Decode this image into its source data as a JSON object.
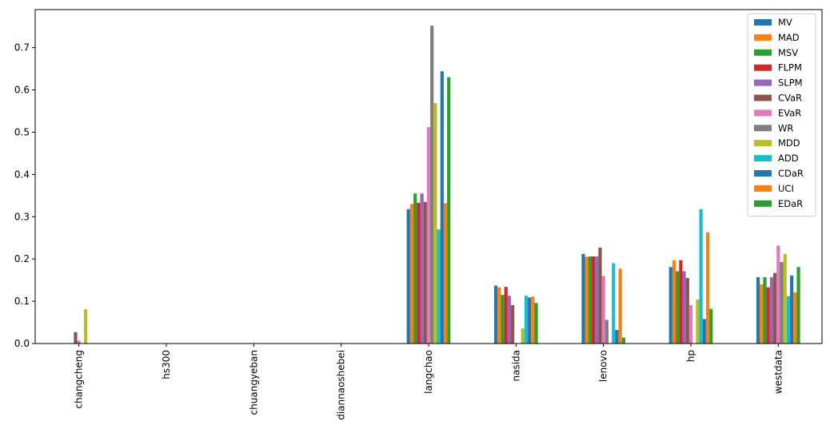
{
  "chart_data": {
    "type": "bar",
    "categories": [
      "changcheng",
      "hs300",
      "chuangyeban",
      "diannaoshebei",
      "langchao",
      "nasida",
      "lenovo",
      "hp",
      "westdata"
    ],
    "ylim": [
      0,
      0.79
    ],
    "yticks": [
      0.0,
      0.1,
      0.2,
      0.3,
      0.4,
      0.5,
      0.6,
      0.7
    ],
    "ytick_labels": [
      "0.0",
      "0.1",
      "0.2",
      "0.3",
      "0.4",
      "0.5",
      "0.6",
      "0.7"
    ],
    "legend_position": "top-right",
    "grid": false,
    "series": [
      {
        "name": "MV",
        "color": "#1f77b4",
        "values": [
          0,
          0,
          0,
          0,
          0.318,
          0.137,
          0.212,
          0.181,
          0.157
        ]
      },
      {
        "name": "MAD",
        "color": "#ff7f0e",
        "values": [
          0,
          0,
          0,
          0,
          0.33,
          0.133,
          0.205,
          0.197,
          0.14
        ]
      },
      {
        "name": "MSV",
        "color": "#2ca02c",
        "values": [
          0,
          0,
          0,
          0,
          0.355,
          0.115,
          0.206,
          0.171,
          0.157
        ]
      },
      {
        "name": "FLPM",
        "color": "#d62728",
        "values": [
          0,
          0,
          0,
          0,
          0.333,
          0.134,
          0.206,
          0.197,
          0.133
        ]
      },
      {
        "name": "SLPM",
        "color": "#9467bd",
        "values": [
          0,
          0,
          0,
          0,
          0.355,
          0.113,
          0.206,
          0.171,
          0.157
        ]
      },
      {
        "name": "CVaR",
        "color": "#8c564b",
        "values": [
          0.027,
          0,
          0,
          0,
          0.335,
          0.091,
          0.227,
          0.155,
          0.167
        ]
      },
      {
        "name": "EVaR",
        "color": "#e377c2",
        "values": [
          0.007,
          0,
          0,
          0,
          0.512,
          0,
          0.16,
          0.091,
          0.232
        ]
      },
      {
        "name": "WR",
        "color": "#7f7f7f",
        "values": [
          0,
          0,
          0,
          0,
          0.752,
          0,
          0.056,
          0,
          0.193
        ]
      },
      {
        "name": "MDD",
        "color": "#bcbd22",
        "values": [
          0.081,
          0,
          0,
          0,
          0.569,
          0.036,
          0,
          0.104,
          0.212
        ]
      },
      {
        "name": "ADD",
        "color": "#17becf",
        "values": [
          0,
          0,
          0,
          0,
          0.27,
          0.113,
          0.19,
          0.318,
          0.112
        ]
      },
      {
        "name": "CDaR",
        "color": "#1f77b4",
        "values": [
          0,
          0,
          0,
          0,
          0.644,
          0.109,
          0.032,
          0.058,
          0.161
        ]
      },
      {
        "name": "UCI",
        "color": "#ff7f0e",
        "values": [
          0,
          0,
          0,
          0,
          0.332,
          0.111,
          0.177,
          0.263,
          0.121
        ]
      },
      {
        "name": "EDaR",
        "color": "#2ca02c",
        "values": [
          0,
          0,
          0,
          0,
          0.63,
          0.096,
          0.014,
          0.082,
          0.181
        ]
      }
    ]
  }
}
